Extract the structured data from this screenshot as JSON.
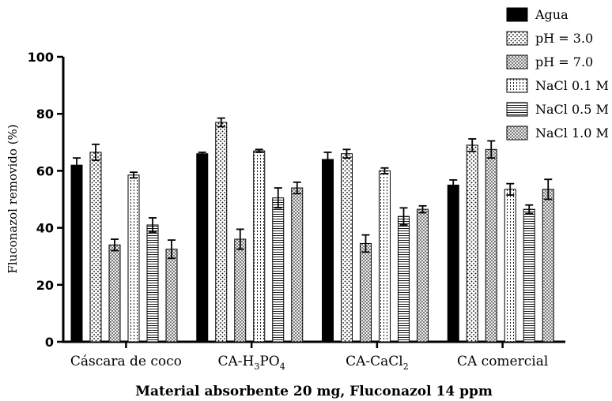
{
  "chart_data": {
    "type": "bar",
    "xlabel": "Material absorbente 20 mg, Fluconazol 14 ppm",
    "ylabel": "Fluconazol removido (%)",
    "ylim": [
      0,
      100
    ],
    "yticks": [
      "0",
      "20",
      "40",
      "60",
      "80",
      "100"
    ],
    "categories": [
      {
        "main": "Cáscara de coco",
        "parts": [
          {
            "t": "Cáscara de coco",
            "sub": false
          }
        ]
      },
      {
        "main": "CA-H3PO4",
        "parts": [
          {
            "t": "CA-H",
            "sub": false
          },
          {
            "t": "3",
            "sub": true
          },
          {
            "t": "PO",
            "sub": false
          },
          {
            "t": "4",
            "sub": true
          }
        ]
      },
      {
        "main": "CA-CaCl2",
        "parts": [
          {
            "t": "CA-CaCl",
            "sub": false
          },
          {
            "t": "2",
            "sub": true
          }
        ]
      },
      {
        "main": "CA comercial",
        "parts": [
          {
            "t": "CA comercial",
            "sub": false
          }
        ]
      }
    ],
    "series": [
      {
        "name": "Agua",
        "pattern": "solid",
        "values": [
          62,
          66,
          64,
          55
        ],
        "errors": [
          2.5,
          0.5,
          2.5,
          1.8
        ]
      },
      {
        "name": "pH = 3.0",
        "pattern": "dots",
        "values": [
          66.5,
          77,
          66,
          69
        ],
        "errors": [
          2.8,
          1.5,
          1.5,
          2.2
        ]
      },
      {
        "name": "pH = 7.0",
        "pattern": "crosshatch",
        "values": [
          34,
          36,
          34.5,
          67.5
        ],
        "errors": [
          2,
          3.5,
          3,
          3
        ]
      },
      {
        "name": "NaCl 0.1 M",
        "pattern": "vdots",
        "values": [
          58.5,
          67,
          60,
          53.5
        ],
        "errors": [
          1,
          0.5,
          1,
          2
        ]
      },
      {
        "name": "NaCl 0.5 M",
        "pattern": "hlines",
        "values": [
          41,
          50.5,
          44,
          46.5
        ],
        "errors": [
          2.5,
          3.5,
          3,
          1.5
        ]
      },
      {
        "name": "NaCl 1.0 M",
        "pattern": "crosshatch",
        "values": [
          32.5,
          54,
          46.5,
          53.5
        ],
        "errors": [
          3.2,
          2,
          1.2,
          3.5
        ]
      }
    ],
    "legend": "top-right",
    "grid": false
  }
}
